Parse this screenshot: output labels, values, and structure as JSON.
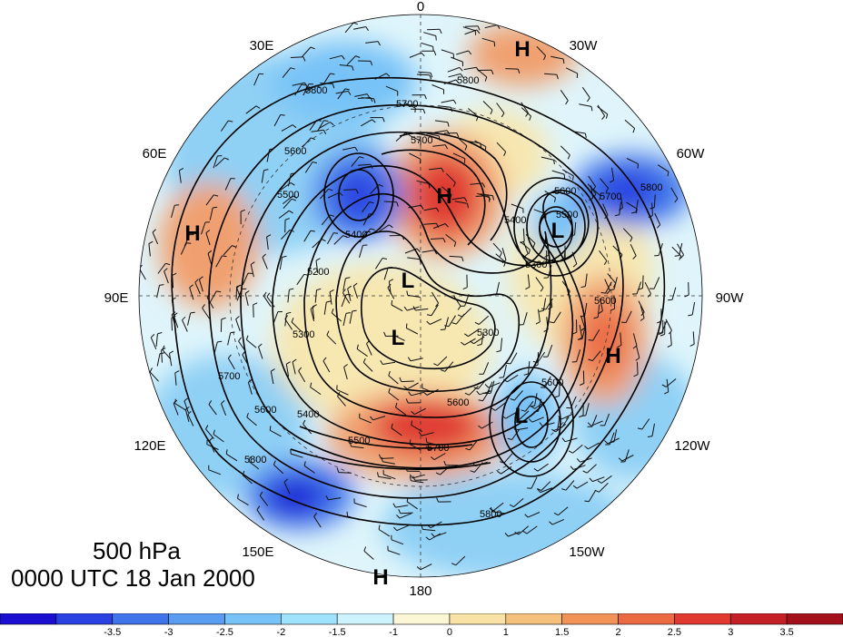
{
  "map": {
    "projection": "north-polar-stereographic",
    "longitude_labels": [
      "0",
      "30W",
      "60W",
      "90W",
      "120W",
      "150W",
      "180",
      "150E",
      "120E",
      "90E",
      "60E",
      "30E"
    ],
    "centers": [
      {
        "type": "H",
        "label": "H"
      },
      {
        "type": "H",
        "label": "H"
      },
      {
        "type": "H",
        "label": "H"
      },
      {
        "type": "H",
        "label": "H"
      },
      {
        "type": "H",
        "label": "H"
      },
      {
        "type": "L",
        "label": "L"
      },
      {
        "type": "L",
        "label": "L"
      },
      {
        "type": "L",
        "label": "L"
      },
      {
        "type": "L",
        "label": "L"
      }
    ],
    "contour_labels": [
      "5800",
      "5800",
      "5700",
      "5700",
      "5600",
      "5500",
      "5500",
      "5400",
      "5300",
      "5300",
      "5200",
      "5600",
      "5700",
      "5800",
      "5400",
      "5600",
      "5500",
      "5700",
      "5800",
      "5600",
      "5600",
      "5700",
      "5400",
      "5300",
      "5600",
      "5800"
    ],
    "anomaly_colors": {
      "strong_negative": "#1a1ad6",
      "negative": "#4d8fe8",
      "weak_negative": "#8fd0f5",
      "near_zero": "#dff5fb",
      "weak_positive": "#f7e7b0",
      "positive": "#f0a070",
      "strong_positive": "#e03a30"
    }
  },
  "title": {
    "level": "500 hPa",
    "time": "0000 UTC 18 Jan 2000"
  },
  "colorbar": {
    "colors": [
      "#1a0fd0",
      "#2a40e0",
      "#3f74ea",
      "#5a9cf0",
      "#77c2f7",
      "#9fe2fb",
      "#cdf3fc",
      "#fbf6d6",
      "#f9e2a6",
      "#f5c07c",
      "#f19358",
      "#eb6a44",
      "#e03a30",
      "#c51f27",
      "#a30f1a"
    ],
    "labels": [
      "-3.5",
      "-3",
      "-2.5",
      "-2",
      "-1.5",
      "-1",
      "0",
      "1",
      "1.5",
      "2",
      "2.5",
      "3",
      "3.5"
    ]
  }
}
